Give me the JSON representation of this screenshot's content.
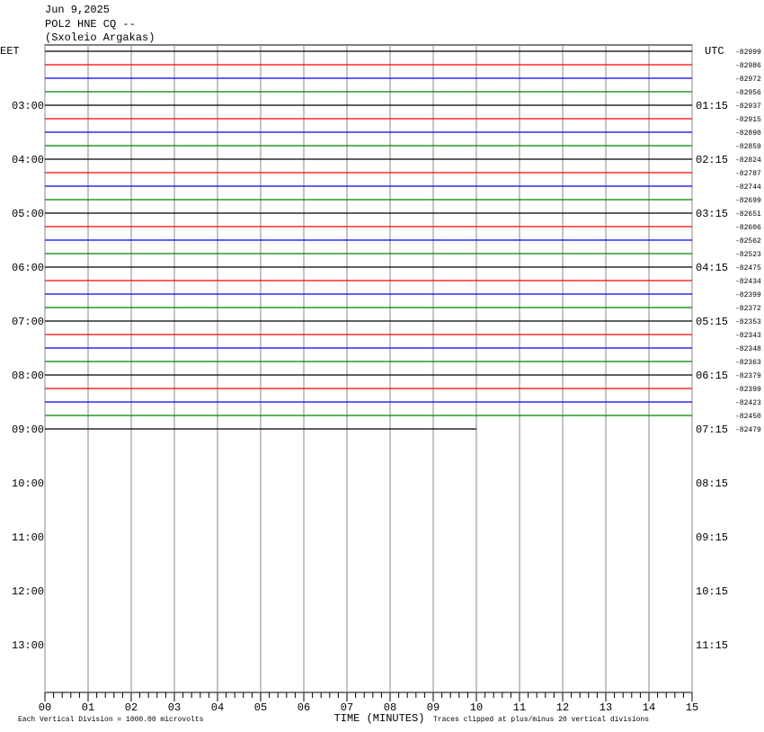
{
  "header": {
    "date": "Jun 9,2025",
    "station": "POL2 HNE CQ --",
    "site": "(Sxoleio Argakas)"
  },
  "left_axis": {
    "title": "EET",
    "labels": [
      "03:00",
      "04:00",
      "05:00",
      "06:00",
      "07:00",
      "08:00",
      "09:00",
      "10:00",
      "11:00",
      "12:00",
      "13:00"
    ]
  },
  "right_axis": {
    "title": "UTC",
    "labels": [
      "01:15",
      "02:15",
      "03:15",
      "04:15",
      "05:15",
      "06:15",
      "07:15",
      "08:15",
      "09:15",
      "10:15",
      "11:15"
    ]
  },
  "traces": {
    "offsets": [
      -82999,
      -82986,
      -82972,
      -82956,
      -82937,
      -82915,
      -82890,
      -82859,
      -82824,
      -82787,
      -82744,
      -82699,
      -82651,
      -82606,
      -82562,
      -82523,
      -82475,
      -82434,
      -82399,
      -82372,
      -82353,
      -82343,
      -82348,
      -82363,
      -82379,
      -82399,
      -82423,
      -82450,
      -82479
    ],
    "colors": [
      "#000000",
      "#ff0000",
      "#0000ff",
      "#008000"
    ],
    "last_end": 10
  },
  "x_axis": {
    "title": "TIME (MINUTES)",
    "ticks": [
      "00",
      "01",
      "02",
      "03",
      "04",
      "05",
      "06",
      "07",
      "08",
      "09",
      "10",
      "11",
      "12",
      "13",
      "14",
      "15"
    ]
  },
  "footer": {
    "scale_note": "Each Vertical Division = 1000.00 microvolts",
    "clip_note": "Traces clipped at plus/minus 20 vertical divisions"
  }
}
